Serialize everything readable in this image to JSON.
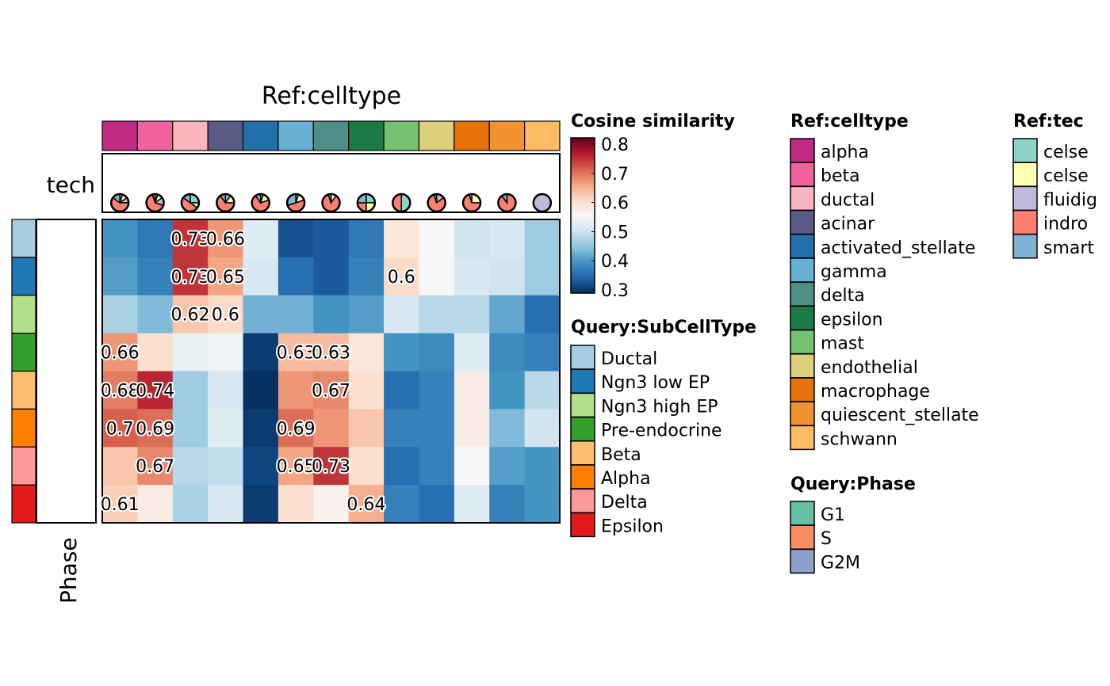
{
  "chart_data": {
    "type": "heatmap",
    "title": "Ref:celltype",
    "columns": [
      "alpha",
      "beta",
      "ductal",
      "acinar",
      "activated_stellate",
      "gamma",
      "delta",
      "epsilon",
      "mast",
      "endothelial",
      "macrophage",
      "quiescent_stellate",
      "schwann"
    ],
    "rows": [
      "Ductal",
      "Ngn3 low EP",
      "Ngn3 high EP",
      "Pre-endocrine",
      "Beta",
      "Alpha",
      "Delta",
      "Epsilon"
    ],
    "values": [
      [
        0.4,
        0.37,
        0.73,
        0.66,
        0.52,
        0.33,
        0.34,
        0.37,
        0.58,
        0.55,
        0.5,
        0.51,
        0.46
      ],
      [
        0.41,
        0.38,
        0.73,
        0.65,
        0.51,
        0.36,
        0.34,
        0.38,
        0.6,
        0.55,
        0.51,
        0.5,
        0.46
      ],
      [
        0.47,
        0.44,
        0.62,
        0.6,
        0.43,
        0.43,
        0.4,
        0.41,
        0.51,
        0.48,
        0.48,
        0.42,
        0.36
      ],
      [
        0.66,
        0.59,
        0.53,
        0.54,
        0.31,
        0.63,
        0.63,
        0.58,
        0.4,
        0.39,
        0.52,
        0.39,
        0.38
      ],
      [
        0.68,
        0.74,
        0.46,
        0.51,
        0.3,
        0.66,
        0.67,
        0.59,
        0.36,
        0.38,
        0.57,
        0.4,
        0.48
      ],
      [
        0.7,
        0.69,
        0.46,
        0.52,
        0.31,
        0.69,
        0.66,
        0.62,
        0.38,
        0.38,
        0.57,
        0.44,
        0.5
      ],
      [
        0.62,
        0.67,
        0.48,
        0.49,
        0.32,
        0.65,
        0.73,
        0.59,
        0.36,
        0.38,
        0.55,
        0.41,
        0.4
      ],
      [
        0.61,
        0.57,
        0.47,
        0.51,
        0.31,
        0.59,
        0.56,
        0.64,
        0.38,
        0.36,
        0.52,
        0.38,
        0.4
      ]
    ],
    "labels": [
      [
        "",
        "",
        "0.73",
        "0.66",
        "",
        "",
        "",
        "",
        "",
        "",
        "",
        "",
        ""
      ],
      [
        "",
        "",
        "0.73",
        "0.65",
        "",
        "",
        "",
        "",
        "0.6",
        "",
        "",
        "",
        ""
      ],
      [
        "",
        "",
        "0.62",
        "0.6",
        "",
        "",
        "",
        "",
        "",
        "",
        "",
        "",
        ""
      ],
      [
        "0.66",
        "",
        "",
        "",
        "",
        "0.63",
        "0.63",
        "",
        "",
        "",
        "",
        "",
        ""
      ],
      [
        "0.68",
        "0.74",
        "",
        "",
        "",
        "",
        "0.67",
        "",
        "",
        "",
        "",
        "",
        ""
      ],
      [
        "0.7",
        "0.69",
        "",
        "",
        "",
        "0.69",
        "",
        "",
        "",
        "",
        "",
        "",
        ""
      ],
      [
        "",
        "0.67",
        "",
        "",
        "",
        "0.65",
        "0.73",
        "",
        "",
        "",
        "",
        "",
        ""
      ],
      [
        "0.61",
        "",
        "",
        "",
        "",
        "",
        "",
        "0.64",
        "",
        "",
        "",
        "",
        ""
      ]
    ],
    "colorscale": {
      "name": "Cosine similarity",
      "range": [
        0.3,
        0.8
      ],
      "ticks": [
        "0.8",
        "0.7",
        "0.6",
        "0.5",
        "0.4",
        "0.3"
      ],
      "colors": [
        "#053061",
        "#2166AC",
        "#4393C3",
        "#92C5DE",
        "#D1E5F0",
        "#F7F7F7",
        "#FDDBC7",
        "#F4A582",
        "#D6604D",
        "#B2182B",
        "#67001F"
      ]
    },
    "tech_label": "tech",
    "phase_label": "Phase",
    "tech_pies": [
      [
        0.05,
        0.1,
        0.1,
        0.6,
        0.15
      ],
      [
        0.05,
        0.1,
        0.15,
        0.65,
        0.05
      ],
      [
        0.25,
        0.1,
        0,
        0.5,
        0.15
      ],
      [
        0.1,
        0.15,
        0,
        0.65,
        0.1
      ],
      [
        0.05,
        0.15,
        0,
        0.7,
        0.1
      ],
      [
        0.05,
        0.15,
        0,
        0.5,
        0.3
      ],
      [
        0,
        0.1,
        0,
        0.85,
        0.05
      ],
      [
        0.25,
        0.25,
        0,
        0.25,
        0.25
      ],
      [
        0.5,
        0,
        0,
        0.5,
        0
      ],
      [
        0,
        0,
        0.15,
        0.8,
        0.05
      ],
      [
        0,
        0.25,
        0,
        0.7,
        0.05
      ],
      [
        0,
        0,
        0,
        0.9,
        0.1
      ],
      [
        0,
        0,
        1.0,
        0,
        0
      ]
    ]
  },
  "legends": {
    "celltype": {
      "title": "Ref:celltype",
      "items": [
        {
          "label": "alpha",
          "color": "#C12A83"
        },
        {
          "label": "beta",
          "color": "#F2629C"
        },
        {
          "label": "ductal",
          "color": "#FCB5BE"
        },
        {
          "label": "acinar",
          "color": "#5A5A87"
        },
        {
          "label": "activated_stellate",
          "color": "#2270A9"
        },
        {
          "label": "gamma",
          "color": "#67B2D4"
        },
        {
          "label": "delta",
          "color": "#4D8F86"
        },
        {
          "label": "epsilon",
          "color": "#1C7A48"
        },
        {
          "label": "mast",
          "color": "#75C071"
        },
        {
          "label": "endothelial",
          "color": "#DCD07C"
        },
        {
          "label": "macrophage",
          "color": "#E57109"
        },
        {
          "label": "quiescent_stellate",
          "color": "#F39231"
        },
        {
          "label": "schwann",
          "color": "#FDBB63"
        }
      ]
    },
    "tech": {
      "title": "Ref:tec",
      "items": [
        {
          "label": "celse",
          "color": "#8DD3C7"
        },
        {
          "label": "celse",
          "color": "#FFFFB3"
        },
        {
          "label": "fluidig",
          "color": "#BEBADA"
        },
        {
          "label": "indro",
          "color": "#FB8072"
        },
        {
          "label": "smart",
          "color": "#80B1D3"
        }
      ]
    },
    "subcelltype": {
      "title": "Query:SubCellType",
      "items": [
        {
          "label": "Ductal",
          "color": "#A6CEE3"
        },
        {
          "label": "Ngn3 low EP",
          "color": "#1F78B4"
        },
        {
          "label": "Ngn3 high EP",
          "color": "#B2DF8A"
        },
        {
          "label": "Pre-endocrine",
          "color": "#33A02C"
        },
        {
          "label": "Beta",
          "color": "#FDBF6F"
        },
        {
          "label": "Alpha",
          "color": "#FF7F00"
        },
        {
          "label": "Delta",
          "color": "#FB9A99"
        },
        {
          "label": "Epsilon",
          "color": "#E31A1C"
        }
      ]
    },
    "phase": {
      "title": "Query:Phase",
      "items": [
        {
          "label": "G1",
          "color": "#66C2A5"
        },
        {
          "label": "S",
          "color": "#FC8D62"
        },
        {
          "label": "G2M",
          "color": "#8DA0CB"
        }
      ]
    }
  }
}
